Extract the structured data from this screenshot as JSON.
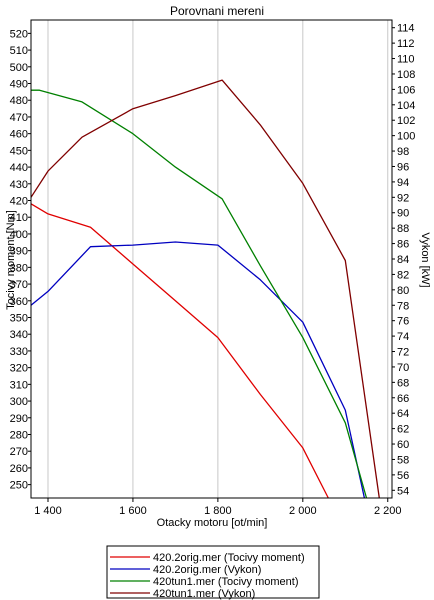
{
  "chart_data": {
    "type": "line",
    "title": "Porovnani mereni",
    "xlabel": "Otacky motoru [ot/min]",
    "ylabel_left": "Tocivy moment [Nm]",
    "ylabel_right": "Vykon [kW]",
    "xlim": [
      1360,
      2210
    ],
    "ylim_left": [
      242,
      528
    ],
    "ylim_right": [
      53,
      115
    ],
    "x_ticks": [
      1400,
      1600,
      1800,
      2000,
      2200
    ],
    "x_tick_labels": [
      "1 400",
      "1 600",
      "1 800",
      "2 000",
      "2 200"
    ],
    "y_left_ticks": [
      250,
      260,
      270,
      280,
      290,
      300,
      310,
      320,
      330,
      340,
      350,
      360,
      370,
      380,
      390,
      400,
      410,
      420,
      430,
      440,
      450,
      460,
      470,
      480,
      490,
      500,
      510,
      520
    ],
    "y_right_ticks": [
      54,
      56,
      58,
      60,
      62,
      64,
      66,
      68,
      70,
      72,
      74,
      76,
      78,
      80,
      82,
      84,
      86,
      88,
      90,
      92,
      94,
      96,
      98,
      100,
      102,
      104,
      106,
      108,
      110,
      112,
      114
    ],
    "grid": "vertical",
    "legend_position": "bottom",
    "series": [
      {
        "name": "420.2orig.mer  (Tocivy moment)",
        "axis": "left",
        "color": "#e00000",
        "x": [
          1360,
          1400,
          1500,
          1600,
          1700,
          1800,
          1900,
          2000,
          2060
        ],
        "y": [
          418,
          412,
          404,
          382,
          360,
          338,
          304,
          272,
          242
        ]
      },
      {
        "name": "420.2orig.mer  (Vykon)",
        "axis": "right",
        "color": "#0000c0",
        "x": [
          1360,
          1400,
          1500,
          1600,
          1700,
          1800,
          1900,
          2000,
          2100,
          2145
        ],
        "y": [
          78.0,
          79.8,
          85.6,
          85.8,
          86.2,
          85.8,
          81.3,
          75.8,
          64.4,
          53
        ]
      },
      {
        "name": "420tun1.mer  (Tocivy moment)",
        "axis": "left",
        "color": "#008000",
        "x": [
          1360,
          1380,
          1480,
          1600,
          1700,
          1810,
          1900,
          2000,
          2100,
          2150
        ],
        "y": [
          486,
          486,
          479,
          460,
          440,
          421,
          381,
          338,
          287,
          242
        ]
      },
      {
        "name": "420tun1.mer  (Vykon)",
        "axis": "right",
        "color": "#800000",
        "x": [
          1360,
          1400,
          1480,
          1600,
          1700,
          1810,
          1900,
          2000,
          2100,
          2180
        ],
        "y": [
          92.0,
          95.4,
          99.8,
          103.5,
          105.2,
          107.2,
          101.4,
          93.8,
          83.8,
          53
        ]
      }
    ]
  }
}
